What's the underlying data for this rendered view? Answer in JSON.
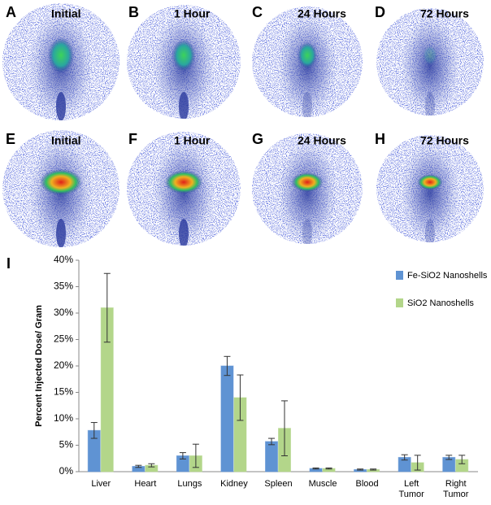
{
  "panels": [
    {
      "letter": "A",
      "label": "Initial"
    },
    {
      "letter": "B",
      "label": "1 Hour"
    },
    {
      "letter": "C",
      "label": "24 Hours"
    },
    {
      "letter": "D",
      "label": "72 Hours"
    },
    {
      "letter": "E",
      "label": "Initial"
    },
    {
      "letter": "F",
      "label": "1 Hour"
    },
    {
      "letter": "G",
      "label": "24 Hours"
    },
    {
      "letter": "H",
      "label": "72 Hours"
    }
  ],
  "chart_data": {
    "type": "bar",
    "panel_letter": "I",
    "ylabel": "Percent Injected Dose/ Gram",
    "categories": [
      "Liver",
      "Heart",
      "Lungs",
      "Kidney",
      "Spleen",
      "Muscle",
      "Blood",
      "Left Tumor",
      "Right Tumor"
    ],
    "series": [
      {
        "name": "Fe-SiO2 Nanoshells",
        "color": "#5f93d3",
        "values": [
          7.8,
          1.0,
          3.0,
          20.0,
          5.7,
          0.6,
          0.4,
          2.7,
          2.7
        ],
        "errors": [
          1.5,
          0.2,
          0.6,
          1.8,
          0.6,
          0.1,
          0.1,
          0.5,
          0.4
        ]
      },
      {
        "name": "SiO2 Nanoshells",
        "color": "#b3d68a",
        "values": [
          31.0,
          1.2,
          3.0,
          14.0,
          8.2,
          0.6,
          0.4,
          1.7,
          2.3
        ],
        "errors": [
          6.5,
          0.3,
          2.2,
          4.3,
          5.2,
          0.1,
          0.1,
          1.4,
          0.8
        ]
      }
    ],
    "ylim": [
      0,
      40
    ],
    "yticks": [
      {
        "value": 0,
        "label": "0%"
      },
      {
        "value": 5,
        "label": "5%"
      },
      {
        "value": 10,
        "label": "10%"
      },
      {
        "value": 15,
        "label": "15%"
      },
      {
        "value": 20,
        "label": "20%"
      },
      {
        "value": 25,
        "label": "25%"
      },
      {
        "value": 30,
        "label": "30%"
      },
      {
        "value": 35,
        "label": "35%"
      },
      {
        "value": 40,
        "label": "40%"
      }
    ],
    "legend": "top-right"
  }
}
